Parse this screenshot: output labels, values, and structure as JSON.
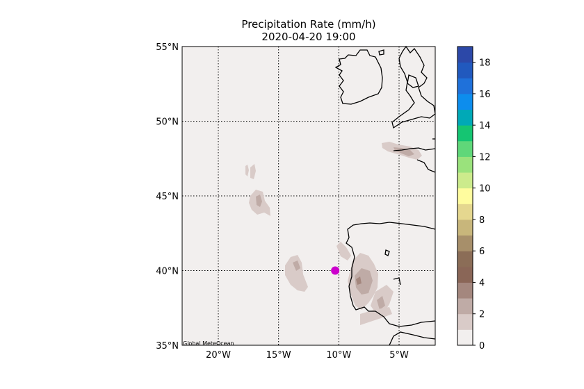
{
  "title": {
    "line1": "Precipitation Rate (mm/h)",
    "line2": "2020-04-20 19:00"
  },
  "credit": "Global MeteOcean",
  "map": {
    "lon_range": [
      -23,
      -2
    ],
    "lat_range": [
      35,
      55
    ],
    "gridlines": "dotted",
    "x_ticks": [
      "20°W",
      "15°W",
      "10°W",
      "5°W"
    ],
    "x_tick_values": [
      -20,
      -15,
      -10,
      -5
    ],
    "y_ticks": [
      "55°N",
      "50°N",
      "45°N",
      "40°N",
      "35°N"
    ],
    "y_tick_values": [
      55,
      50,
      45,
      40,
      35
    ],
    "marker": {
      "lon": -10.3,
      "lat": 40.0,
      "color": "#cc00cc"
    },
    "land_color": "#f2efee",
    "coast_color": "#000000"
  },
  "colorbar": {
    "tick_labels": [
      "0",
      "2",
      "4",
      "6",
      "8",
      "10",
      "12",
      "14",
      "16",
      "18"
    ],
    "range": [
      0,
      19
    ],
    "colors": [
      "#f2efee",
      "#d9cbc8",
      "#bfaba6",
      "#a4877e",
      "#8a6657",
      "#8b6d57",
      "#a78f6a",
      "#c8b67b",
      "#e5d78f",
      "#fffc9e",
      "#cceb8c",
      "#9ae27c",
      "#5fd779",
      "#15c572",
      "#00a9b7",
      "#0d8ded",
      "#1f71da",
      "#2159be",
      "#2c48a8"
    ]
  }
}
